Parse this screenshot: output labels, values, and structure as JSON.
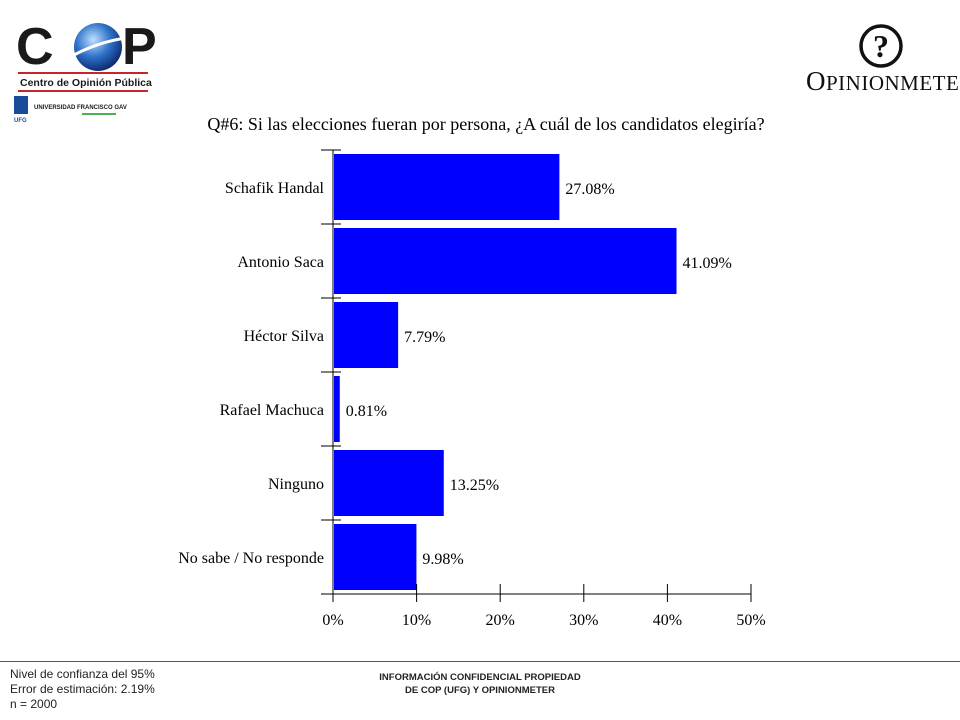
{
  "header": {
    "cop_logo_text": "COP",
    "cop_subtitle": "Centro de Opinión Pública",
    "ufg_text": "UNIVERSIDAD FRANCISCO GAV",
    "ufg_short": "UFG",
    "opinion_logo_symbol": "?",
    "opinion_logo_first": "O",
    "opinion_logo_rest": "PINIONMETER"
  },
  "colors": {
    "bar": "#0000ff",
    "cop_red": "#c8242b",
    "cop_blue": "#1a4a9a"
  },
  "chart_data": {
    "type": "bar",
    "orientation": "horizontal",
    "title": "Q#6: Si las elecciones fueran por persona, ¿A cuál de los candidatos elegiría?",
    "categories": [
      "Schafik Handal",
      "Antonio Saca",
      "Héctor Silva",
      "Rafael Machuca",
      "Ninguno",
      "No sabe / No responde"
    ],
    "values": [
      27.08,
      41.09,
      7.79,
      0.81,
      13.25,
      9.98
    ],
    "value_labels": [
      "27.08%",
      "41.09%",
      "7.79%",
      "0.81%",
      "13.25%",
      "9.98%"
    ],
    "xlim": [
      0,
      50
    ],
    "xticks": [
      "0%",
      "10%",
      "20%",
      "30%",
      "40%",
      "50%"
    ],
    "xlabel": "",
    "ylabel": "",
    "grid": false,
    "legend": "none"
  },
  "footer": {
    "left_lines": [
      "Nivel de confianza del 95%",
      "Error de estimación: 2.19%",
      "n = 2000"
    ],
    "center_lines": [
      "INFORMACIÓN CONFIDENCIAL PROPIEDAD",
      "DE COP (UFG) Y OPINIONMETER"
    ]
  }
}
